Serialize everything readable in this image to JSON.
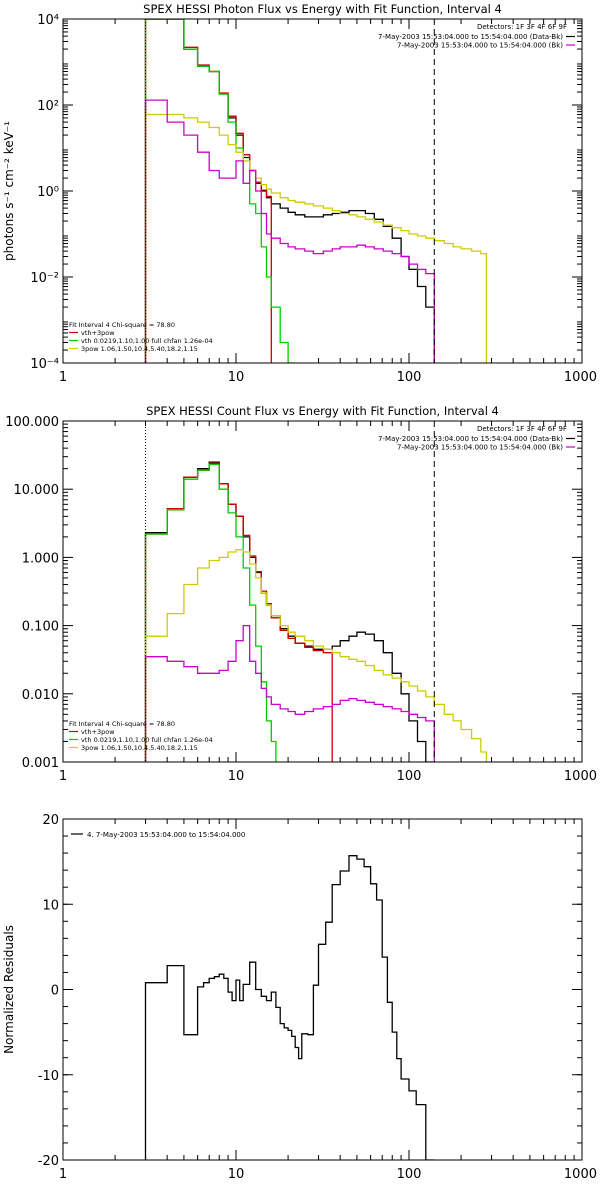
{
  "chart_data": [
    {
      "type": "line",
      "title": "SPEX HESSI Photon Flux vs Energy with Fit Function, Interval 4",
      "xlabel": "",
      "ylabel": "photons s⁻¹ cm⁻² keV⁻¹",
      "xscale": "log",
      "yscale": "log",
      "xlim": [
        1,
        1000
      ],
      "ylim": [
        0.0001,
        10000
      ],
      "x_ticks": [
        {
          "value": 1,
          "label": "1"
        },
        {
          "value": 10,
          "label": "10"
        },
        {
          "value": 100,
          "label": "100"
        },
        {
          "value": 1000,
          "label": "1000"
        }
      ],
      "y_ticks": [
        {
          "value": 0.0001,
          "label": "10⁻⁴"
        },
        {
          "value": 0.01,
          "label": "10⁻²"
        },
        {
          "value": 1,
          "label": "10⁰"
        },
        {
          "value": 100,
          "label": "10²"
        },
        {
          "value": 10000,
          "label": "10⁴"
        }
      ],
      "vlines": [
        {
          "x": 3,
          "style": "dotted",
          "color": "#000000"
        },
        {
          "x": 140,
          "style": "dashed",
          "color": "#000000"
        }
      ],
      "legend_top": {
        "placement": "top-right",
        "header": "Detectors: 1F 3F 4F 6F 9F",
        "entries": [
          {
            "label": "7-May-2003 15:53:04.000 to 15:54:04.000 (Data-Bk)",
            "color": "#000000"
          },
          {
            "label": "7-May-2003 15:53:04.000 to 15:54:04.000 (Bk)",
            "color": "#cc00cc"
          }
        ]
      },
      "legend_bottom": {
        "placement": "bottom-left",
        "header": "Fit Interval  4     Chi-square = 78.80",
        "entries": [
          {
            "label": "vth+3pow",
            "color": "#cc0000"
          },
          {
            "label": "vth 0.0219,1.10,1.00  full chfan 1.26e-04",
            "color": "#00cc00"
          },
          {
            "label": "3pow 1.06,1.50,10.4,5.40,18.2,1.15",
            "color": "#cccc00"
          }
        ]
      },
      "series": [
        {
          "name": "Data-Bk",
          "color": "#000000",
          "edges": [
            3,
            4,
            5,
            6,
            7,
            8,
            9,
            10,
            11,
            12,
            13,
            14,
            15,
            16,
            18,
            20,
            22,
            25,
            28,
            32,
            36,
            40,
            45,
            50,
            56,
            63,
            71,
            80,
            90,
            100,
            112,
            125,
            140
          ],
          "values": [
            10000,
            10000,
            2000,
            800,
            600,
            180,
            50,
            20,
            6,
            3,
            1.5,
            1.0,
            0.7,
            0.5,
            0.4,
            0.32,
            0.28,
            0.25,
            0.25,
            0.28,
            0.3,
            0.32,
            0.35,
            0.35,
            0.3,
            0.22,
            0.15,
            0.08,
            0.03,
            0.015,
            0.006,
            0.002
          ]
        },
        {
          "name": "vth+3pow",
          "color": "#cc0000",
          "edges": [
            3,
            4,
            5,
            6,
            7,
            8,
            9,
            10,
            11,
            12,
            13,
            14,
            15,
            16
          ],
          "values": [
            10000,
            10000,
            2200,
            850,
            600,
            190,
            55,
            22,
            7,
            3,
            1.6,
            1.05,
            0.75
          ]
        },
        {
          "name": "vth",
          "color": "#00cc00",
          "edges": [
            3,
            4,
            5,
            6,
            7,
            8,
            9,
            10,
            11,
            12,
            13,
            14,
            15,
            16,
            18,
            20,
            22
          ],
          "values": [
            10000,
            10000,
            2000,
            800,
            600,
            180,
            40,
            10,
            1.5,
            0.5,
            0.3,
            0.05,
            0.01,
            0.002,
            0.0003,
            0.0001
          ]
        },
        {
          "name": "3pow",
          "color": "#cccc00",
          "edges": [
            3,
            4,
            5,
            6,
            7,
            8,
            9,
            10,
            11,
            12,
            13,
            14,
            15,
            16,
            18,
            20,
            22,
            25,
            28,
            32,
            36,
            40,
            45,
            50,
            56,
            63,
            71,
            80,
            90,
            100,
            112,
            125,
            140,
            160,
            180,
            200,
            230,
            260,
            280
          ],
          "values": [
            60,
            60,
            50,
            40,
            30,
            20,
            12,
            8,
            5,
            3,
            2,
            1.4,
            1.1,
            0.9,
            0.7,
            0.6,
            0.55,
            0.5,
            0.45,
            0.4,
            0.35,
            0.3,
            0.28,
            0.25,
            0.22,
            0.19,
            0.16,
            0.14,
            0.12,
            0.1,
            0.09,
            0.08,
            0.07,
            0.06,
            0.05,
            0.045,
            0.04,
            0.035
          ]
        },
        {
          "name": "Bk",
          "color": "#cc00cc",
          "edges": [
            3,
            4,
            5,
            6,
            7,
            8,
            9,
            10,
            11,
            12,
            13,
            14,
            15,
            16,
            18,
            20,
            22,
            25,
            28,
            32,
            36,
            40,
            45,
            50,
            56,
            63,
            71,
            80,
            90,
            100,
            112,
            125,
            140
          ],
          "values": [
            130,
            40,
            20,
            8,
            3,
            2,
            2,
            5,
            1.5,
            3,
            1,
            0.3,
            0.1,
            0.08,
            0.06,
            0.05,
            0.045,
            0.04,
            0.035,
            0.04,
            0.045,
            0.05,
            0.05,
            0.055,
            0.05,
            0.045,
            0.04,
            0.035,
            0.03,
            0.02,
            0.015,
            0.012
          ]
        }
      ]
    },
    {
      "type": "line",
      "title": "SPEX HESSI Count Flux vs Energy with Fit Function, Interval 4",
      "xlabel": "",
      "ylabel": "",
      "xscale": "log",
      "yscale": "log",
      "xlim": [
        1,
        1000
      ],
      "ylim": [
        0.001,
        100
      ],
      "x_ticks": [
        {
          "value": 1,
          "label": "1"
        },
        {
          "value": 10,
          "label": "10"
        },
        {
          "value": 100,
          "label": "100"
        },
        {
          "value": 1000,
          "label": "1000"
        }
      ],
      "y_ticks": [
        {
          "value": 0.001,
          "label": "0.001"
        },
        {
          "value": 0.01,
          "label": "0.010"
        },
        {
          "value": 0.1,
          "label": "0.100"
        },
        {
          "value": 1,
          "label": "1.000"
        },
        {
          "value": 10,
          "label": "10.000"
        },
        {
          "value": 100,
          "label": "100.000"
        }
      ],
      "vlines": [
        {
          "x": 3,
          "style": "dotted",
          "color": "#000000"
        },
        {
          "x": 140,
          "style": "dashed",
          "color": "#000000"
        }
      ],
      "legend_top": {
        "placement": "top-right",
        "header": "Detectors: 1F 3F 4F 6F 9F",
        "entries": [
          {
            "label": "7-May-2003 15:53:04.000 to 15:54:04.000 (Data-Bk)",
            "color": "#000000"
          },
          {
            "label": "7-May-2003 15:53:04.000 to 15:54:04.000 (Bk)",
            "color": "#cc00cc"
          }
        ]
      },
      "legend_bottom": {
        "placement": "bottom-left",
        "header": "Fit Interval  4     Chi-square = 78.80",
        "entries": [
          {
            "label": "vth+3pow",
            "color": "#cc0000"
          },
          {
            "label": "vth 0.0219,1.10,1.00  full chfan 1.26e-04",
            "color": "#00cc00"
          },
          {
            "label": "3pow 1.06,1.50,10.4,5.40,18.2,1.15",
            "color": "#cccc00"
          }
        ]
      },
      "series": [
        {
          "name": "Data-Bk",
          "color": "#000000",
          "edges": [
            3,
            4,
            5,
            6,
            7,
            8,
            9,
            10,
            11,
            12,
            13,
            14,
            15,
            16,
            18,
            20,
            22,
            25,
            28,
            32,
            36,
            40,
            45,
            50,
            56,
            63,
            71,
            80,
            90,
            100,
            112,
            125,
            140
          ],
          "values": [
            2.3,
            5,
            15,
            20,
            25,
            12,
            6,
            4,
            2,
            1,
            0.6,
            0.3,
            0.2,
            0.14,
            0.09,
            0.07,
            0.055,
            0.05,
            0.045,
            0.045,
            0.05,
            0.06,
            0.07,
            0.08,
            0.075,
            0.06,
            0.04,
            0.02,
            0.01,
            0.004,
            0.002,
            0.001
          ]
        },
        {
          "name": "vth+3pow",
          "color": "#cc0000",
          "edges": [
            3,
            4,
            5,
            6,
            7,
            8,
            9,
            10,
            11,
            12,
            13,
            14,
            15,
            16,
            18,
            20,
            22,
            25,
            28,
            32,
            36
          ],
          "values": [
            2.2,
            5.2,
            15,
            19,
            24,
            12,
            6,
            4,
            2.1,
            1.05,
            0.62,
            0.32,
            0.21,
            0.13,
            0.085,
            0.065,
            0.055,
            0.048,
            0.043,
            0.04
          ]
        },
        {
          "name": "vth",
          "color": "#00cc00",
          "edges": [
            3,
            4,
            5,
            6,
            7,
            8,
            9,
            10,
            11,
            12,
            13,
            14,
            15,
            16,
            17
          ],
          "values": [
            2.2,
            5,
            14,
            19,
            23,
            10,
            4.5,
            2,
            0.7,
            0.2,
            0.05,
            0.015,
            0.004,
            0.002
          ]
        },
        {
          "name": "3pow",
          "color": "#cccc00",
          "edges": [
            3,
            4,
            5,
            6,
            7,
            8,
            9,
            10,
            11,
            12,
            13,
            14,
            15,
            16,
            18,
            20,
            22,
            25,
            28,
            32,
            36,
            40,
            45,
            50,
            56,
            63,
            71,
            80,
            90,
            100,
            112,
            125,
            140,
            160,
            180,
            200,
            230,
            260,
            280
          ],
          "values": [
            0.07,
            0.15,
            0.4,
            0.7,
            0.9,
            1.0,
            1.2,
            1.3,
            1.2,
            0.8,
            0.5,
            0.3,
            0.2,
            0.14,
            0.1,
            0.08,
            0.07,
            0.06,
            0.05,
            0.045,
            0.04,
            0.035,
            0.032,
            0.03,
            0.026,
            0.022,
            0.019,
            0.017,
            0.015,
            0.013,
            0.011,
            0.009,
            0.007,
            0.005,
            0.004,
            0.003,
            0.0022,
            0.0014
          ]
        },
        {
          "name": "Bk",
          "color": "#cc00cc",
          "edges": [
            3,
            4,
            5,
            6,
            7,
            8,
            9,
            10,
            11,
            12,
            13,
            14,
            15,
            16,
            18,
            20,
            22,
            25,
            28,
            32,
            36,
            40,
            45,
            50,
            56,
            63,
            71,
            80,
            90,
            100,
            112,
            125,
            140
          ],
          "values": [
            0.035,
            0.03,
            0.025,
            0.02,
            0.02,
            0.022,
            0.03,
            0.06,
            0.1,
            0.03,
            0.02,
            0.012,
            0.009,
            0.007,
            0.006,
            0.0055,
            0.005,
            0.0055,
            0.006,
            0.0065,
            0.007,
            0.008,
            0.0085,
            0.008,
            0.0075,
            0.007,
            0.0065,
            0.006,
            0.0055,
            0.005,
            0.0045,
            0.004
          ]
        }
      ]
    },
    {
      "type": "line",
      "title": "",
      "xlabel": "",
      "ylabel": "Normalized Residuals",
      "xscale": "log",
      "yscale": "linear",
      "xlim": [
        1,
        1000
      ],
      "ylim": [
        -20,
        20
      ],
      "x_ticks": [
        {
          "value": 1,
          "label": "1"
        },
        {
          "value": 10,
          "label": "10"
        },
        {
          "value": 100,
          "label": "100"
        },
        {
          "value": 1000,
          "label": "1000"
        }
      ],
      "y_ticks": [
        {
          "value": -20,
          "label": "-20"
        },
        {
          "value": -10,
          "label": "-10"
        },
        {
          "value": 0,
          "label": "0"
        },
        {
          "value": 10,
          "label": "10"
        },
        {
          "value": 20,
          "label": "20"
        }
      ],
      "vlines": [],
      "legend_top": {
        "placement": "top-left",
        "header": "",
        "entries": [
          {
            "label": "4.  7-May-2003 15:53:04.000 to 15:54:04.000",
            "color": "#000000"
          }
        ]
      },
      "series": [
        {
          "name": "4.  7-May-2003 15:53:04.000 to 15:54:04.000",
          "color": "#000000",
          "edges": [
            3,
            4,
            5,
            6,
            6.5,
            7,
            7.5,
            8,
            8.5,
            9,
            9.5,
            10,
            10.5,
            11,
            12,
            13,
            14,
            15,
            16,
            17,
            18,
            19,
            20,
            21,
            22,
            23,
            24,
            26,
            28,
            30,
            33,
            36,
            40,
            45,
            50,
            55,
            60,
            65,
            70,
            75,
            80,
            85,
            90,
            100,
            110,
            125,
            140
          ],
          "values": [
            0.8,
            2.8,
            -5.3,
            0.3,
            0.8,
            1.3,
            1.5,
            1.8,
            1.3,
            -0.3,
            -1.3,
            1.1,
            -1.3,
            0.6,
            3.2,
            0,
            -0.8,
            -1.3,
            -0.3,
            -2.1,
            -4,
            -4.5,
            -4.8,
            -5.5,
            -6.8,
            -8.1,
            -5.2,
            -5.3,
            0.5,
            5.3,
            7.9,
            12.3,
            13.9,
            15.7,
            15.3,
            14.4,
            12.4,
            10.5,
            3.8,
            -1.5,
            -5,
            -8.1,
            -10.5,
            -11.9,
            -13.5,
            -20
          ]
        }
      ]
    }
  ]
}
